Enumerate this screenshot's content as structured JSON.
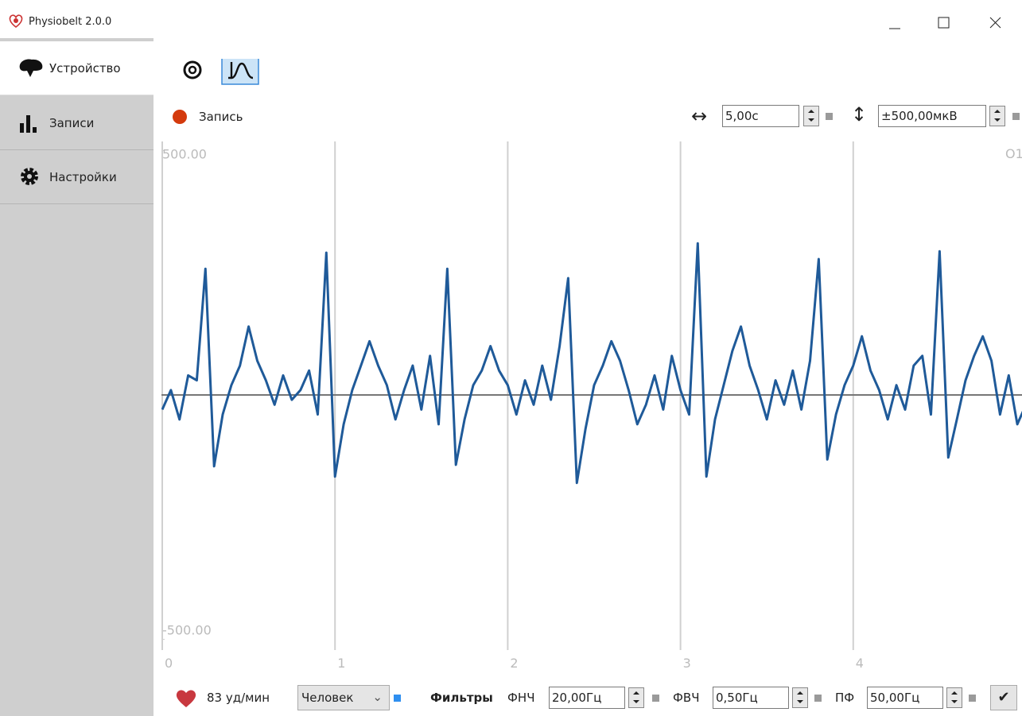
{
  "window": {
    "title": "Physiobelt 2.0.0"
  },
  "sidebar": {
    "items": [
      "Устройство",
      "Записи",
      "Настройки"
    ]
  },
  "toolbar": {
    "record": "Запись",
    "time_window": "5,00с",
    "amplitude": "±500,00мкВ"
  },
  "chart_data": {
    "type": "line",
    "channel": "O1",
    "color": "#1f5a99",
    "x": [
      0,
      0.05,
      0.1,
      0.15,
      0.2,
      0.25,
      0.3,
      0.35,
      0.4,
      0.45,
      0.5,
      0.55,
      0.6,
      0.65,
      0.7,
      0.75,
      0.8,
      0.85,
      0.9,
      0.95,
      1,
      1.05,
      1.1,
      1.15,
      1.2,
      1.25,
      1.3,
      1.35,
      1.4,
      1.45,
      1.5,
      1.55,
      1.6,
      1.65,
      1.7,
      1.75,
      1.8,
      1.85,
      1.9,
      1.95,
      2,
      2.05,
      2.1,
      2.15,
      2.2,
      2.25,
      2.3,
      2.35,
      2.4,
      2.45,
      2.5,
      2.55,
      2.6,
      2.65,
      2.7,
      2.75,
      2.8,
      2.85,
      2.9,
      2.95,
      3,
      3.05,
      3.1,
      3.15,
      3.2,
      3.25,
      3.3,
      3.35,
      3.4,
      3.45,
      3.5,
      3.55,
      3.6,
      3.65,
      3.7,
      3.75,
      3.8,
      3.85,
      3.9,
      3.95,
      4,
      4.05,
      4.1,
      4.15,
      4.2,
      4.25,
      4.3,
      4.35,
      4.4,
      4.45,
      4.5,
      4.55,
      4.6,
      4.65,
      4.7,
      4.75,
      4.8,
      4.85,
      4.9,
      4.95,
      5
    ],
    "values": [
      -30,
      10,
      -50,
      40,
      30,
      258,
      -146,
      -40,
      20,
      60,
      140,
      70,
      30,
      -20,
      40,
      -10,
      10,
      50,
      -40,
      291,
      -167,
      -60,
      10,
      60,
      110,
      60,
      20,
      -50,
      10,
      60,
      -30,
      80,
      -60,
      258,
      -143,
      -50,
      20,
      50,
      100,
      50,
      20,
      -40,
      30,
      -20,
      60,
      -10,
      100,
      239,
      -180,
      -70,
      20,
      60,
      110,
      70,
      10,
      -60,
      -20,
      40,
      -30,
      80,
      10,
      -40,
      310,
      -167,
      -50,
      20,
      90,
      140,
      60,
      10,
      -50,
      30,
      -20,
      50,
      -30,
      70,
      278,
      -132,
      -40,
      20,
      60,
      120,
      50,
      10,
      -50,
      20,
      -30,
      60,
      80,
      -40,
      294,
      -128,
      -50,
      30,
      80,
      120,
      70,
      -40,
      40,
      -60,
      -20
    ],
    "xlim": [
      0,
      5
    ],
    "xticks": [
      0,
      1,
      2,
      3,
      4
    ],
    "ylim": [
      -500,
      500
    ],
    "yticks": [
      {
        "value": -500,
        "label": "-500.00"
      },
      {
        "value": 500,
        "label": "500.00"
      }
    ],
    "grid": true
  },
  "footer": {
    "heart_rate": "83 уд/мин",
    "subject": "Человек",
    "filters": "Фильтры",
    "lpf_label": "ФНЧ",
    "lpf": "20,00Гц",
    "hpf_label": "ФВЧ",
    "hpf": "0,50Гц",
    "notch_label": "ПФ",
    "notch": "50,00Гц"
  }
}
